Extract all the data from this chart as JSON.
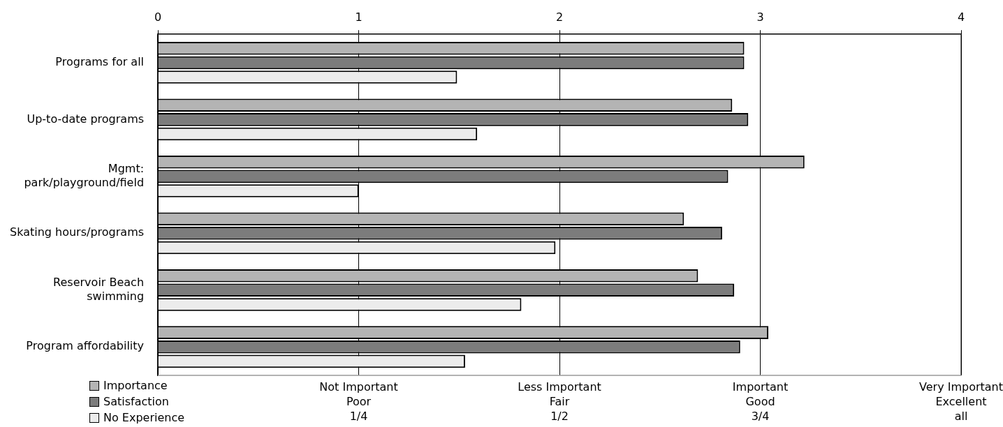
{
  "chart_data": {
    "type": "bar",
    "orientation": "horizontal",
    "categories": [
      "Programs for all",
      "Up-to-date programs",
      "Mgmt:\npark/playground/field",
      "Skating hours/programs",
      "Reservoir Beach\nswimming",
      "Program affordability"
    ],
    "series": [
      {
        "name": "Importance",
        "color": "#b4b4b4",
        "values": [
          2.92,
          2.86,
          3.22,
          2.62,
          2.69,
          3.04
        ]
      },
      {
        "name": "Satisfaction",
        "color": "#7c7c7c",
        "values": [
          2.92,
          2.94,
          2.84,
          2.81,
          2.87,
          2.9
        ]
      },
      {
        "name": "No Experience",
        "color": "#ececec",
        "values": [
          1.49,
          1.59,
          1.0,
          1.98,
          1.81,
          1.53
        ]
      }
    ],
    "xlim": [
      0,
      4
    ],
    "xticks": [
      0,
      1,
      2,
      3,
      4
    ],
    "annotations": [
      "Not Important\nPoor\n1/4",
      "Less Important\nFair\n1/2",
      "Important\nGood\n3/4",
      "Very Important\nExcellent\nall"
    ],
    "grid": "x",
    "legend": "bottom left"
  }
}
